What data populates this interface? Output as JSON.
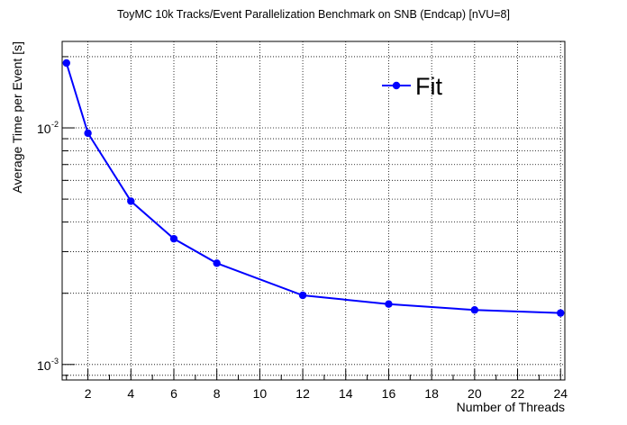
{
  "chart_data": {
    "type": "line",
    "title": "ToyMC 10k Tracks/Event Parallelization Benchmark on SNB (Endcap) [nVU=8]",
    "xlabel": "Number of Threads",
    "ylabel": "Average Time per Event [s]",
    "xlim": [
      0.8,
      24.2
    ],
    "ylim": [
      0.00086,
      0.0232
    ],
    "y_scale": "log",
    "x_ticks": [
      "2",
      "4",
      "6",
      "8",
      "10",
      "12",
      "14",
      "16",
      "18",
      "20",
      "22",
      "24"
    ],
    "y_ticks": [
      {
        "value": 0.01,
        "base": "10",
        "exp": "-2"
      },
      {
        "value": 0.001,
        "base": "10",
        "exp": "-3"
      }
    ],
    "grid": true,
    "legend_position": "top-right",
    "series": [
      {
        "name": "Fit",
        "color": "#0000ff",
        "x": [
          1,
          2,
          4,
          6,
          8,
          12,
          16,
          20,
          24
        ],
        "y": [
          0.0188,
          0.0095,
          0.0049,
          0.0034,
          0.00268,
          0.00196,
          0.0018,
          0.0017,
          0.00165
        ]
      }
    ]
  }
}
